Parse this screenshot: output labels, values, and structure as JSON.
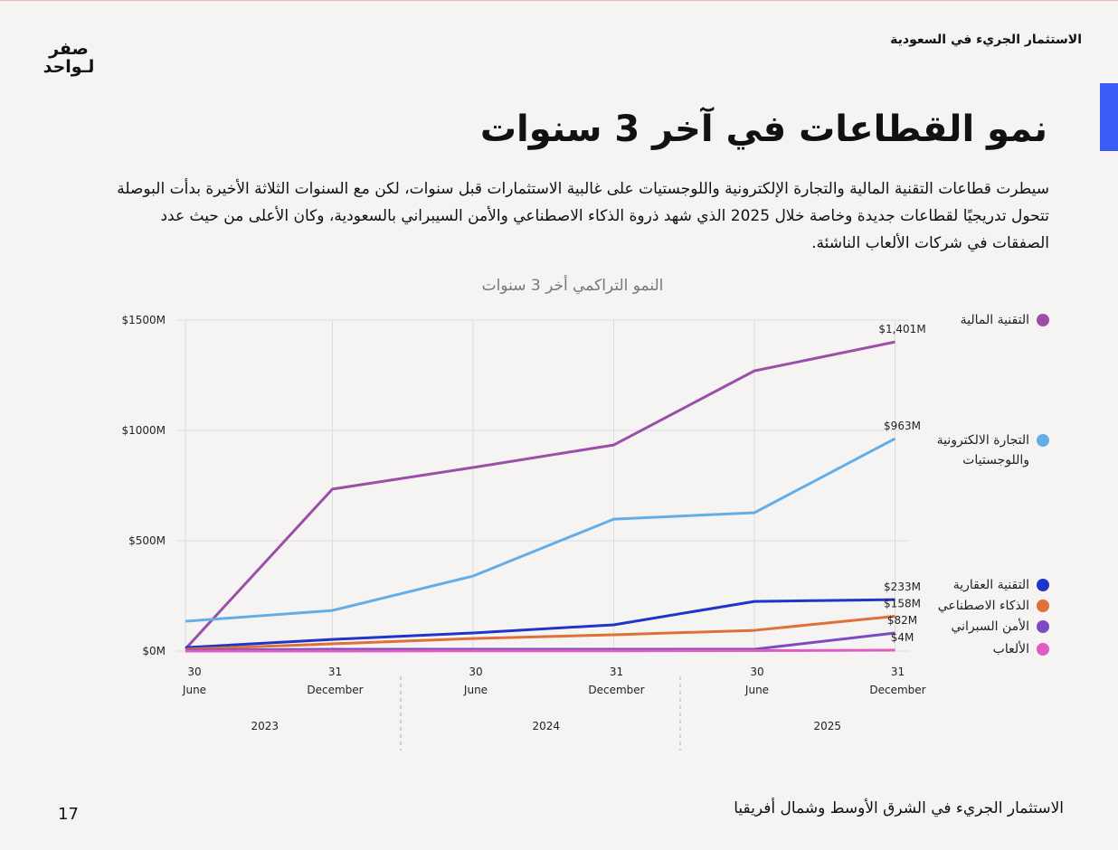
{
  "header": {
    "report": "الاستثمار الجريء في السعودية",
    "logo": [
      "صفر",
      "لـواحد"
    ]
  },
  "title": "نمو القطاعات في آخر 3 سنوات",
  "paragraph": "سيطرت قطاعات التقنية المالية والتجارة الإلكترونية واللوجستيات على غالبية الاستثمارات قبل سنوات، لكن مع السنوات الثلاثة الأخيرة بدأت البوصلة تتحول تدريجيًا لقطاعات جديدة وخاصة خلال 2025 الذي شهد ذروة الذكاء الاصطناعي والأمن السيبراني بالسعودية، وكان الأعلى من حيث عدد الصفقات في شركات الألعاب الناشئة.",
  "chart_data": {
    "type": "line",
    "title": "النمو التراكمي أخر 3 سنوات",
    "categories": [
      [
        "30",
        "June"
      ],
      [
        "31",
        "December"
      ],
      [
        "30",
        "June"
      ],
      [
        "31",
        "December"
      ],
      [
        "30",
        "June"
      ],
      [
        "31",
        "December"
      ]
    ],
    "year_groups": [
      "2023",
      "2024",
      "2025"
    ],
    "ylim": [
      0,
      1500
    ],
    "yticks": [
      {
        "value": 0,
        "label": "$0M"
      },
      {
        "value": 500,
        "label": "$500M"
      },
      {
        "value": 1000,
        "label": "$1000M"
      },
      {
        "value": 1500,
        "label": "$1500M"
      }
    ],
    "grid": true,
    "series": [
      {
        "name": "التقنية المالية",
        "color": "#9b4fa8",
        "values": [
          10,
          734,
          832,
          934,
          1270,
          1401
        ],
        "value_labels": [
          null,
          null,
          null,
          null,
          null,
          "$1,401M"
        ]
      },
      {
        "name": "التجارة الالكترونية واللوجستيات",
        "color": "#63aee8",
        "values": [
          135,
          184,
          340,
          598,
          627,
          963
        ],
        "value_labels": [
          null,
          null,
          null,
          null,
          null,
          "$963M"
        ]
      },
      {
        "name": "التقنية العقارية",
        "color": "#1f35c9",
        "values": [
          16,
          53,
          82,
          119,
          225,
          233
        ],
        "value_labels": [
          null,
          null,
          null,
          null,
          null,
          "$233M"
        ]
      },
      {
        "name": "الذكاء الاصطناعي",
        "color": "#e07038",
        "values": [
          8,
          33,
          57,
          74,
          94,
          158
        ],
        "value_labels": [
          null,
          null,
          null,
          null,
          null,
          "$158M"
        ]
      },
      {
        "name": "الأمن السبراني",
        "color": "#7a4cc0",
        "values": [
          4,
          8,
          8,
          8,
          8,
          82
        ],
        "value_labels": [
          null,
          null,
          null,
          null,
          null,
          "$82M"
        ]
      },
      {
        "name": "الألعاب",
        "color": "#e05cc0",
        "values": [
          0,
          0,
          1,
          1,
          2,
          4
        ],
        "value_labels": [
          null,
          null,
          null,
          null,
          null,
          "$4M"
        ]
      }
    ]
  },
  "footer": {
    "text": "الاستثمار الجريء في الشرق الأوسط وشمال أفريقيا",
    "page": "17"
  }
}
